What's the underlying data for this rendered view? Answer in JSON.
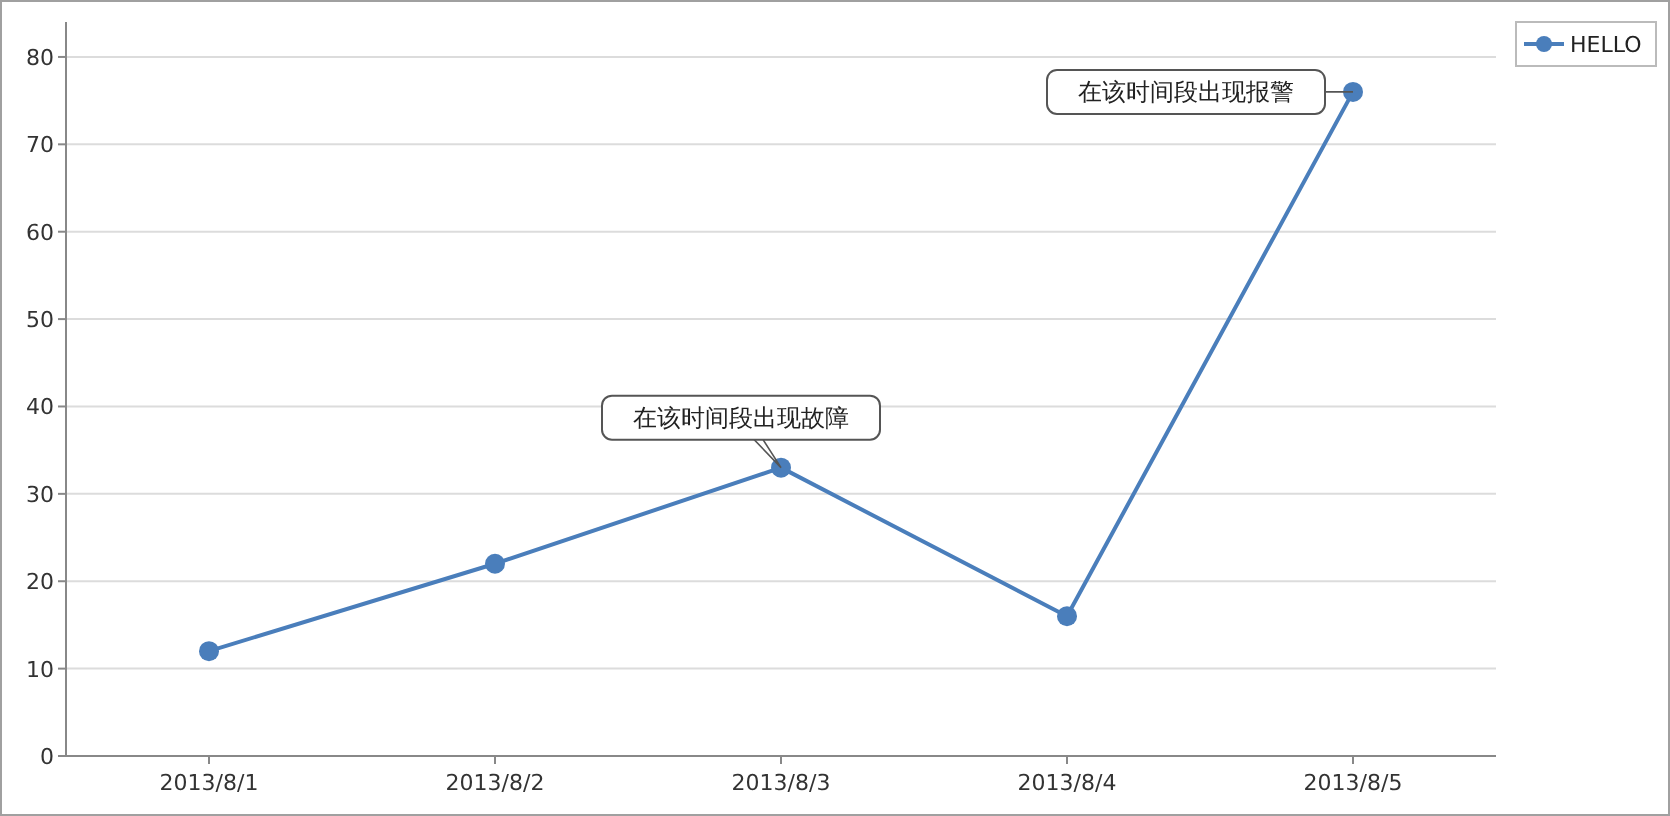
{
  "chart_data": {
    "type": "line",
    "categories": [
      "2013/8/1",
      "2013/8/2",
      "2013/8/3",
      "2013/8/4",
      "2013/8/5"
    ],
    "series": [
      {
        "name": "HELLO",
        "color": "#4a7ebb",
        "values": [
          12,
          22,
          33,
          16,
          76
        ]
      }
    ],
    "ylim": [
      0,
      84
    ],
    "yticks": [
      0,
      10,
      20,
      30,
      40,
      50,
      60,
      70,
      80
    ],
    "grid": "y",
    "legend": "top right",
    "marker": "circle",
    "line_style": "solid",
    "annotations": [
      {
        "text": "在该时间段出现故障",
        "x": "2013/8/3",
        "y": 33
      },
      {
        "text": "在该时间段出现报警",
        "x": "2013/8/5",
        "y": 76
      }
    ]
  }
}
